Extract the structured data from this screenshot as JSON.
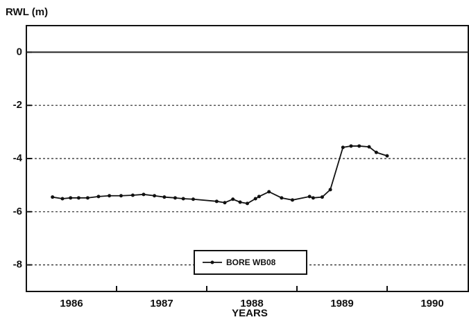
{
  "chart_data": {
    "type": "line",
    "y_label": "RWL (m)",
    "x_label": "YEARS",
    "x": [
      1986.29,
      1986.4,
      1986.49,
      1986.58,
      1986.68,
      1986.8,
      1986.92,
      1987.05,
      1987.18,
      1987.3,
      1987.42,
      1987.53,
      1987.65,
      1987.74,
      1987.85,
      1988.11,
      1988.2,
      1988.29,
      1988.37,
      1988.45,
      1988.54,
      1988.58,
      1988.69,
      1988.83,
      1988.95,
      1989.14,
      1989.18,
      1989.28,
      1989.37,
      1989.51,
      1989.6,
      1989.69,
      1989.8,
      1989.88,
      1990.0
    ],
    "series": [
      {
        "name": "BORE WB08",
        "color": "#111111",
        "values": [
          -5.45,
          -5.51,
          -5.48,
          -5.48,
          -5.48,
          -5.43,
          -5.4,
          -5.4,
          -5.38,
          -5.35,
          -5.4,
          -5.45,
          -5.48,
          -5.51,
          -5.53,
          -5.61,
          -5.66,
          -5.53,
          -5.64,
          -5.69,
          -5.51,
          -5.43,
          -5.25,
          -5.48,
          -5.56,
          -5.43,
          -5.48,
          -5.45,
          -5.17,
          -3.58,
          -3.53,
          -3.53,
          -3.56,
          -3.77,
          -3.9
        ]
      }
    ],
    "xlim": [
      1986.0,
      1990.9
    ],
    "xticks": [
      {
        "value": 1986.5,
        "label": "1986"
      },
      {
        "value": 1987.5,
        "label": "1987"
      },
      {
        "value": 1988.5,
        "label": "1988"
      },
      {
        "value": 1989.5,
        "label": "1989"
      },
      {
        "value": 1990.5,
        "label": "1990"
      }
    ],
    "xminor": [
      1987,
      1988,
      1989,
      1990
    ],
    "ylim": [
      -9,
      1
    ],
    "yticks": [
      0,
      -2,
      -4,
      -6,
      -8
    ],
    "grid": true,
    "legend": "bottom"
  }
}
